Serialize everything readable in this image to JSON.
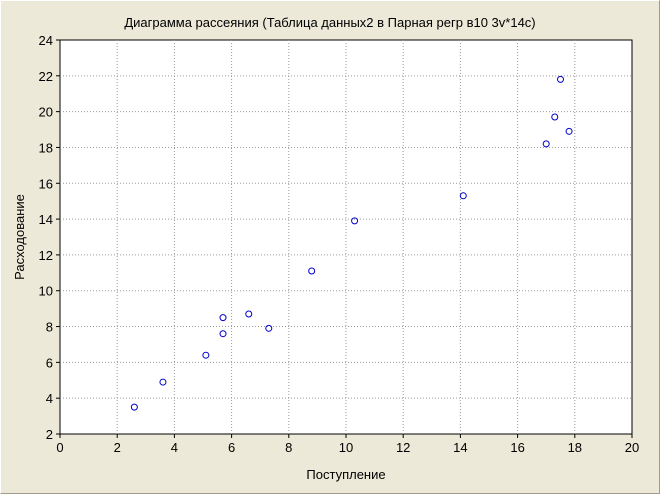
{
  "chart_data": {
    "type": "scatter",
    "title": "Диаграмма рассеяния (Таблица данных2 в Парная регр в10 3v*14c)",
    "xlabel": "Поступление",
    "ylabel": "Расходование",
    "xlim": [
      0,
      20
    ],
    "ylim": [
      2,
      24
    ],
    "x_ticks": [
      "0",
      "2",
      "4",
      "6",
      "8",
      "10",
      "12",
      "14",
      "16",
      "18",
      "20"
    ],
    "y_ticks": [
      "2",
      "4",
      "6",
      "8",
      "10",
      "12",
      "14",
      "16",
      "18",
      "20",
      "22",
      "24"
    ],
    "grid": true,
    "marker_color": "#0000cc",
    "points": [
      {
        "x": 2.6,
        "y": 3.5
      },
      {
        "x": 3.6,
        "y": 4.9
      },
      {
        "x": 5.1,
        "y": 6.4
      },
      {
        "x": 5.7,
        "y": 7.6
      },
      {
        "x": 5.7,
        "y": 8.5
      },
      {
        "x": 6.6,
        "y": 8.7
      },
      {
        "x": 7.3,
        "y": 7.9
      },
      {
        "x": 8.8,
        "y": 11.1
      },
      {
        "x": 10.3,
        "y": 13.9
      },
      {
        "x": 14.1,
        "y": 15.3
      },
      {
        "x": 17.0,
        "y": 18.2
      },
      {
        "x": 17.3,
        "y": 19.7
      },
      {
        "x": 17.5,
        "y": 21.8
      },
      {
        "x": 17.8,
        "y": 18.9
      }
    ]
  }
}
